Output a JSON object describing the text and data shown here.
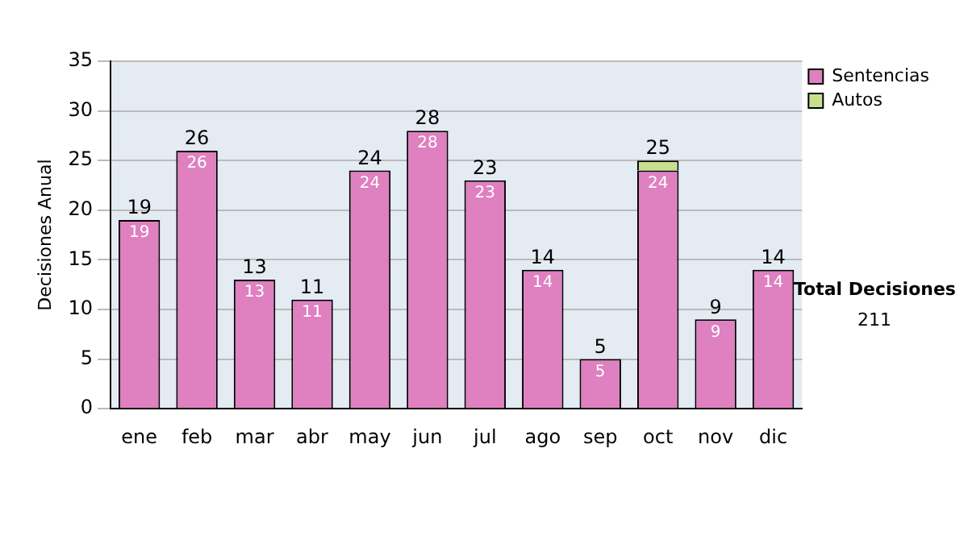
{
  "chart_data": {
    "type": "bar",
    "ylabel": "Decisiones Anual",
    "stacked": true,
    "categories": [
      "ene",
      "feb",
      "mar",
      "abr",
      "may",
      "jun",
      "jul",
      "ago",
      "sep",
      "oct",
      "nov",
      "dic"
    ],
    "series": [
      {
        "name": "Sentencias",
        "color": "#df80c0",
        "values": [
          19,
          26,
          13,
          11,
          24,
          28,
          23,
          14,
          5,
          24,
          9,
          14
        ],
        "value_labels": [
          "19",
          "26",
          "13",
          "11",
          "24",
          "28",
          "23",
          "14",
          "5",
          "24",
          "9",
          "14"
        ]
      },
      {
        "name": "Autos",
        "color": "#c8e08c",
        "values": [
          null,
          null,
          null,
          null,
          null,
          null,
          null,
          null,
          null,
          1,
          null,
          null
        ]
      }
    ],
    "totals": [
      "19",
      "26",
      "13",
      "11",
      "24",
      "28",
      "23",
      "14",
      "5",
      "25",
      "9",
      "14"
    ],
    "ylim": [
      0,
      35
    ],
    "yticks": [
      0,
      5,
      10,
      15,
      20,
      25,
      30,
      35
    ],
    "grid": "y",
    "legend": "right",
    "annotations": [
      "Total Decisiones",
      "211"
    ]
  }
}
